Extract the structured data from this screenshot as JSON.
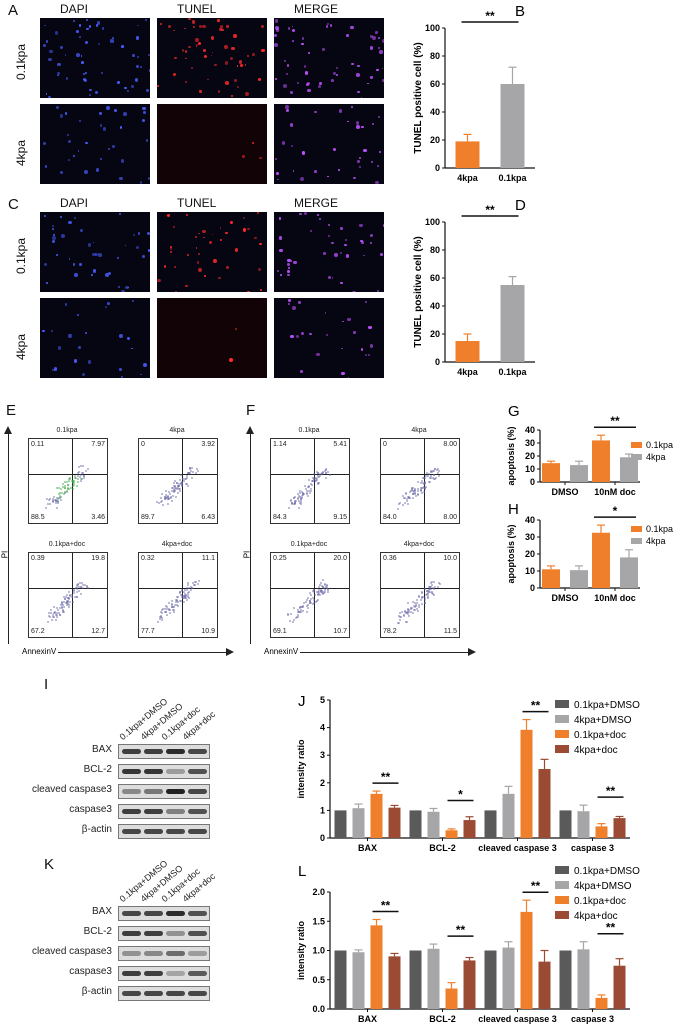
{
  "panels": {
    "A": {
      "letter": "A",
      "columns": [
        "DAPI",
        "TUNEL",
        "MERGE"
      ],
      "rows": [
        "0.1kpa",
        "4kpa"
      ]
    },
    "C": {
      "letter": "C",
      "columns": [
        "DAPI",
        "TUNEL",
        "MERGE"
      ],
      "rows": [
        "0.1kpa",
        "4kpa"
      ]
    },
    "E": {
      "letter": "E",
      "y_axis": "PI",
      "x_axis": "AnnexinV",
      "plots": [
        {
          "title": "0.1kpa",
          "q": [
            "0.11",
            "7.97",
            "88.5",
            "3.46"
          ]
        },
        {
          "title": "4kpa",
          "q": [
            "0",
            "3.92",
            "89.7",
            "6.43"
          ]
        },
        {
          "title": "0.1kpa+doc",
          "q": [
            "0.39",
            "19.8",
            "67.2",
            "12.7"
          ]
        },
        {
          "title": "4kpa+doc",
          "q": [
            "0.32",
            "11.1",
            "77.7",
            "10.9"
          ]
        }
      ]
    },
    "F": {
      "letter": "F",
      "y_axis": "PI",
      "x_axis": "AnnexinV",
      "plots": [
        {
          "title": "0.1kpa",
          "q": [
            "1.14",
            "5.41",
            "84.3",
            "9.15"
          ]
        },
        {
          "title": "4kpa",
          "q": [
            "0",
            "8.00",
            "84.0",
            "8.00"
          ]
        },
        {
          "title": "0.1kpa+doc",
          "q": [
            "0.25",
            "20.0",
            "69.1",
            "10.7"
          ]
        },
        {
          "title": "4kpa+doc",
          "q": [
            "0.36",
            "10.0",
            "78.2",
            "11.5"
          ]
        }
      ]
    },
    "I": {
      "letter": "I",
      "lanes": [
        "0.1kpa+DMSO",
        "4kpa+DMSO",
        "0.1kpa+doc",
        "4kpa+doc"
      ],
      "rows": [
        {
          "label": "BAX",
          "intensity": [
            0.85,
            0.85,
            0.95,
            0.8
          ]
        },
        {
          "label": "BCL-2",
          "intensity": [
            0.9,
            0.9,
            0.35,
            0.75
          ]
        },
        {
          "label": "cleaved caspase3",
          "intensity": [
            0.45,
            0.55,
            1.0,
            0.8
          ]
        },
        {
          "label": "caspase3",
          "intensity": [
            0.85,
            0.85,
            0.5,
            0.75
          ]
        },
        {
          "label": "β-actin",
          "intensity": [
            0.8,
            0.8,
            0.8,
            0.8
          ]
        }
      ]
    },
    "K": {
      "letter": "K",
      "lanes": [
        "0.1kpa+DMSO",
        "4kpa+DMSO",
        "0.1kpa+doc",
        "4kpa+doc"
      ],
      "rows": [
        {
          "label": "BAX",
          "intensity": [
            0.8,
            0.8,
            0.95,
            0.75
          ]
        },
        {
          "label": "BCL-2",
          "intensity": [
            0.85,
            0.85,
            0.4,
            0.75
          ]
        },
        {
          "label": "cleaved caspase3",
          "intensity": [
            0.4,
            0.45,
            0.6,
            0.35
          ]
        },
        {
          "label": "caspase3",
          "intensity": [
            0.85,
            0.85,
            0.3,
            0.7
          ]
        },
        {
          "label": "β-actin",
          "intensity": [
            0.8,
            0.8,
            0.8,
            0.8
          ]
        }
      ]
    }
  },
  "colors": {
    "orange": "#f07f2c",
    "grey": "#a6a6a8",
    "dark_grey": "#5a5a5a",
    "brown": "#9b4a33"
  },
  "chart_data": [
    {
      "id": "B",
      "letter": "B",
      "type": "bar",
      "categories": [
        "4kpa",
        "0.1kpa"
      ],
      "series": [
        {
          "values": [
            19,
            60
          ],
          "errors": [
            5,
            12
          ],
          "colors": [
            "#f07f2c",
            "#a6a6a8"
          ]
        }
      ],
      "ylabel": "TUNEL positive cell (%)",
      "ylim": [
        0,
        100
      ],
      "yticks": [
        "0",
        "20",
        "40",
        "60",
        "80",
        "100"
      ],
      "significance": [
        {
          "label": "**",
          "between": [
            "4kpa",
            "0.1kpa"
          ]
        }
      ]
    },
    {
      "id": "D",
      "letter": "D",
      "type": "bar",
      "categories": [
        "4kpa",
        "0.1kpa"
      ],
      "series": [
        {
          "values": [
            15,
            55
          ],
          "errors": [
            5,
            6
          ],
          "colors": [
            "#f07f2c",
            "#a6a6a8"
          ]
        }
      ],
      "ylabel": "TUNEL positive cell (%)",
      "ylim": [
        0,
        100
      ],
      "yticks": [
        "0",
        "20",
        "40",
        "60",
        "80",
        "100"
      ],
      "significance": [
        {
          "label": "**",
          "between": [
            "4kpa",
            "0.1kpa"
          ]
        }
      ]
    },
    {
      "id": "G",
      "letter": "G",
      "type": "bar",
      "categories": [
        "DMSO",
        "10nM doc"
      ],
      "series": [
        {
          "name": "0.1kpa",
          "color": "#f07f2c",
          "values": [
            14.5,
            32
          ],
          "errors": [
            1.5,
            4
          ]
        },
        {
          "name": "4kpa",
          "color": "#a6a6a8",
          "values": [
            13,
            19
          ],
          "errors": [
            3,
            2.5
          ]
        }
      ],
      "ylabel": "apoptosis (%)",
      "ylim": [
        0,
        40
      ],
      "yticks": [
        "0",
        "10",
        "20",
        "30",
        "40"
      ],
      "legend": "right",
      "significance": [
        {
          "label": "**",
          "category": "10nM doc"
        }
      ]
    },
    {
      "id": "H",
      "letter": "H",
      "type": "bar",
      "categories": [
        "DMSO",
        "10nM doc"
      ],
      "series": [
        {
          "name": "0.1kpa",
          "color": "#f07f2c",
          "values": [
            11,
            32.5
          ],
          "errors": [
            2,
            4.5
          ]
        },
        {
          "name": "4kpa",
          "color": "#a6a6a8",
          "values": [
            10.5,
            18
          ],
          "errors": [
            2.5,
            4.5
          ]
        }
      ],
      "ylabel": "apoptosis (%)",
      "ylim": [
        0,
        40
      ],
      "yticks": [
        "0",
        "10",
        "20",
        "30",
        "40"
      ],
      "legend": "right",
      "significance": [
        {
          "label": "*",
          "category": "10nM doc"
        }
      ]
    },
    {
      "id": "J",
      "letter": "J",
      "type": "bar",
      "categories": [
        "BAX",
        "BCL-2",
        "cleaved caspase 3",
        "caspase 3"
      ],
      "series": [
        {
          "name": "0.1kpa+DMSO",
          "color": "#5a5a5a",
          "values": [
            1,
            1,
            1,
            1
          ],
          "errors": [
            0,
            0,
            0,
            0
          ]
        },
        {
          "name": "4kpa+DMSO",
          "color": "#a6a6a8",
          "values": [
            1.08,
            0.95,
            1.6,
            0.97
          ],
          "errors": [
            0.15,
            0.12,
            0.27,
            0.22
          ]
        },
        {
          "name": "0.1kpa+doc",
          "color": "#f07f2c",
          "values": [
            1.6,
            0.28,
            3.92,
            0.42
          ],
          "errors": [
            0.1,
            0.05,
            0.37,
            0.1
          ]
        },
        {
          "name": "4kpa+doc",
          "color": "#9b4a33",
          "values": [
            1.1,
            0.65,
            2.5,
            0.72
          ],
          "errors": [
            0.08,
            0.12,
            0.35,
            0.06
          ]
        }
      ],
      "ylabel": "intensity ratio",
      "ylim": [
        0,
        5
      ],
      "yticks": [
        "0",
        "1",
        "2",
        "3",
        "4",
        "5"
      ],
      "legend": "top-right",
      "significance": [
        {
          "label": "**",
          "category": "BAX"
        },
        {
          "label": "*",
          "category": "BCL-2"
        },
        {
          "label": "**",
          "category": "cleaved caspase 3"
        },
        {
          "label": "**",
          "category": "caspase 3"
        }
      ]
    },
    {
      "id": "L",
      "letter": "L",
      "type": "bar",
      "categories": [
        "BAX",
        "BCL-2",
        "cleaved caspase 3",
        "caspase 3"
      ],
      "series": [
        {
          "name": "0.1kpa+DMSO",
          "color": "#5a5a5a",
          "values": [
            1,
            1,
            1,
            1
          ],
          "errors": [
            0,
            0,
            0,
            0
          ]
        },
        {
          "name": "4kpa+DMSO",
          "color": "#a6a6a8",
          "values": [
            0.97,
            1.03,
            1.05,
            1.02
          ],
          "errors": [
            0.04,
            0.08,
            0.1,
            0.13
          ]
        },
        {
          "name": "0.1kpa+doc",
          "color": "#f07f2c",
          "values": [
            1.43,
            0.35,
            1.66,
            0.19
          ],
          "errors": [
            0.1,
            0.1,
            0.2,
            0.05
          ]
        },
        {
          "name": "4kpa+doc",
          "color": "#9b4a33",
          "values": [
            0.9,
            0.83,
            0.81,
            0.74
          ],
          "errors": [
            0.05,
            0.05,
            0.19,
            0.12
          ]
        }
      ],
      "ylabel": "intensity ratio",
      "ylim": [
        0,
        2
      ],
      "yticks": [
        "0.0",
        "0.5",
        "1.0",
        "1.5",
        "2.0"
      ],
      "legend": "top-right",
      "significance": [
        {
          "label": "**",
          "category": "BAX"
        },
        {
          "label": "**",
          "category": "BCL-2"
        },
        {
          "label": "**",
          "category": "cleaved caspase 3"
        },
        {
          "label": "**",
          "category": "caspase 3"
        }
      ]
    }
  ]
}
